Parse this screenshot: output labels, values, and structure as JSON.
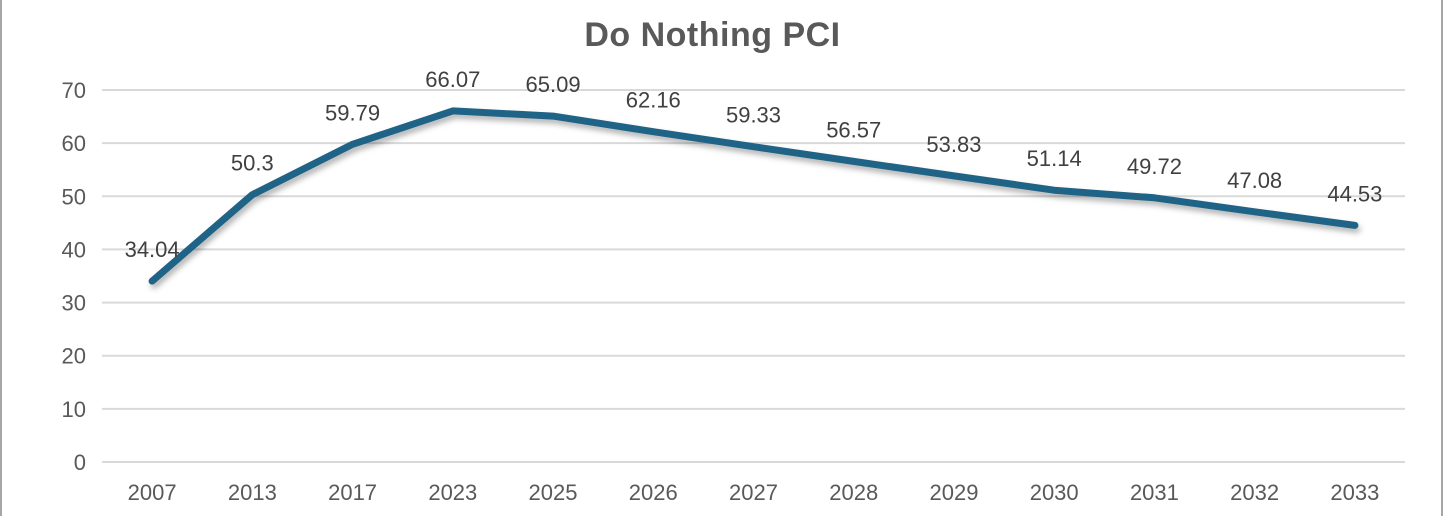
{
  "chart_data": {
    "type": "line",
    "title": "Do Nothing PCI",
    "categories": [
      "2007",
      "2013",
      "2017",
      "2023",
      "2025",
      "2026",
      "2027",
      "2028",
      "2029",
      "2030",
      "2031",
      "2032",
      "2033"
    ],
    "series": [
      {
        "name": "Do Nothing PCI",
        "values": [
          34.04,
          50.3,
          59.79,
          66.07,
          65.09,
          62.16,
          59.33,
          56.57,
          53.83,
          51.14,
          49.72,
          47.08,
          44.53
        ]
      }
    ],
    "data_labels": [
      "34.04",
      "50.3",
      "59.79",
      "66.07",
      "65.09",
      "62.16",
      "59.33",
      "56.57",
      "53.83",
      "51.14",
      "49.72",
      "47.08",
      "44.53"
    ],
    "xlabel": "",
    "ylabel": "",
    "y_ticks": [
      0,
      10,
      20,
      30,
      40,
      50,
      60,
      70
    ],
    "ylim": [
      0,
      70
    ],
    "grid": true,
    "legend_position": "none",
    "colors": {
      "line": "#1f6386",
      "gridline": "#d9d9d9",
      "axis_text": "#595959",
      "data_label_text": "#404040",
      "title_text": "#595959",
      "frame_border": "#a6a6a6",
      "background": "#ffffff"
    }
  }
}
